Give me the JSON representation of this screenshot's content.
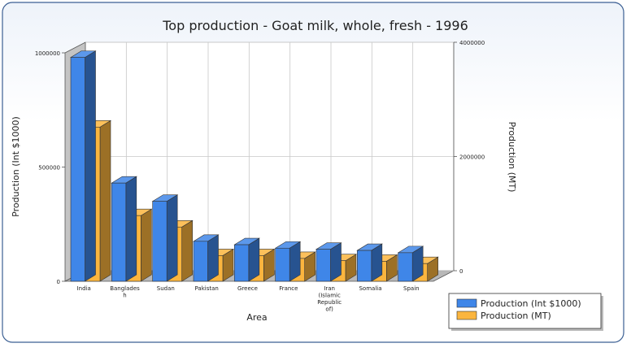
{
  "chart_data": {
    "type": "bar",
    "title": "Top production - Goat milk, whole, fresh - 1996",
    "xlabel": "Area",
    "ylabel_left": "Production (Int $1000)",
    "ylabel_right": "Production (MT)",
    "categories": [
      [
        "India"
      ],
      [
        "Banglades",
        "h"
      ],
      [
        "Sudan"
      ],
      [
        "Pakistan"
      ],
      [
        "Greece"
      ],
      [
        "France"
      ],
      [
        "Iran",
        "(Islamic",
        "Republic",
        "of)"
      ],
      [
        "Somalia"
      ],
      [
        "Spain"
      ]
    ],
    "series": [
      {
        "name": "Production (Int $1000)",
        "axis": "left",
        "color": "#3f86e8",
        "values": [
          980000,
          430000,
          350000,
          175000,
          160000,
          145000,
          140000,
          135000,
          125000
        ]
      },
      {
        "name": "Production (MT)",
        "axis": "right",
        "color": "#fbb53e",
        "values": [
          2700000,
          1150000,
          950000,
          450000,
          450000,
          400000,
          360000,
          350000,
          310000
        ]
      }
    ],
    "ylim_left": [
      0,
      1000000
    ],
    "ylim_right": [
      0,
      4000000
    ],
    "left_ticks": [
      {
        "value": 0,
        "label": "0"
      },
      {
        "value": 500000,
        "label": "500000"
      },
      {
        "value": 1000000,
        "label": "1000000"
      }
    ],
    "right_ticks": [
      {
        "value": 0,
        "label": "0"
      },
      {
        "value": 2000000,
        "label": "2000000"
      },
      {
        "value": 4000000,
        "label": "4000000"
      }
    ],
    "grid": true,
    "legend_position": "bottom-right"
  }
}
